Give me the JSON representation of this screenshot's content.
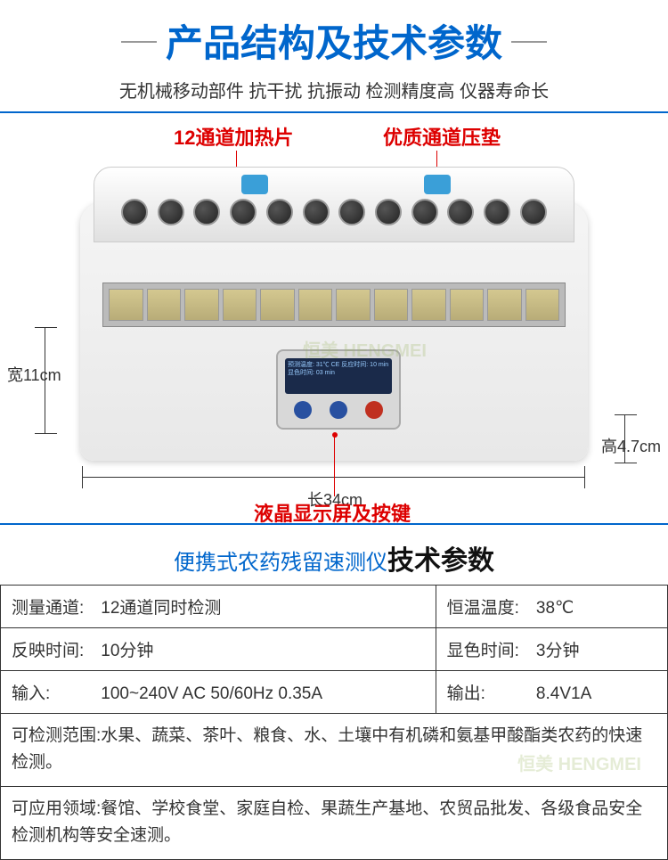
{
  "header": {
    "title": "产品结构及技术参数",
    "subtitle": "无机械移动部件  抗干扰  抗振动  检测精度高  仪器寿命长"
  },
  "diagram": {
    "callout_heating": "12通道加热片",
    "callout_pad": "优质通道压垫",
    "callout_lcd": "液晶显示屏及按键",
    "dim_width": "宽11cm",
    "dim_height": "高4.7cm",
    "dim_length": "长34cm",
    "lcd_text": "预测温度: 31℃  CE\n反应时间: 10 min\n显色时间: 03 min",
    "channel_count": 12,
    "colors": {
      "callout_color": "#dd0000",
      "device_bg": "#e8e8e8",
      "knob_color": "#333333",
      "slot_color": "#c4b880",
      "lcd_bg": "#1a2a4a",
      "btn_blue": "#2850a0",
      "btn_red": "#c03020",
      "clip_color": "#3a9fd8"
    }
  },
  "spec_header": {
    "prefix": "便携式农药残留速测仪",
    "suffix": "技术参数"
  },
  "specs": {
    "rows": [
      {
        "l_label": "测量通道:",
        "l_val": "12通道同时检测",
        "r_label": "恒温温度:",
        "r_val": "38℃"
      },
      {
        "l_label": "反映时间:",
        "l_val": "10分钟",
        "r_label": "显色时间:",
        "r_val": "3分钟"
      },
      {
        "l_label": "输入:",
        "l_val": "100~240V AC 50/60Hz 0.35A",
        "r_label": "输出:",
        "r_val": "8.4V1A"
      }
    ],
    "full_rows": [
      "可检测范围:水果、蔬菜、茶叶、粮食、水、土壤中有机磷和氨基甲酸酯类农药的快速检测。",
      "可应用领域:餐馆、学校食堂、家庭自检、果蔬生产基地、农贸品批发、各级食品安全检测机构等安全速测。"
    ]
  },
  "watermark": "恒美 HENGMEI"
}
